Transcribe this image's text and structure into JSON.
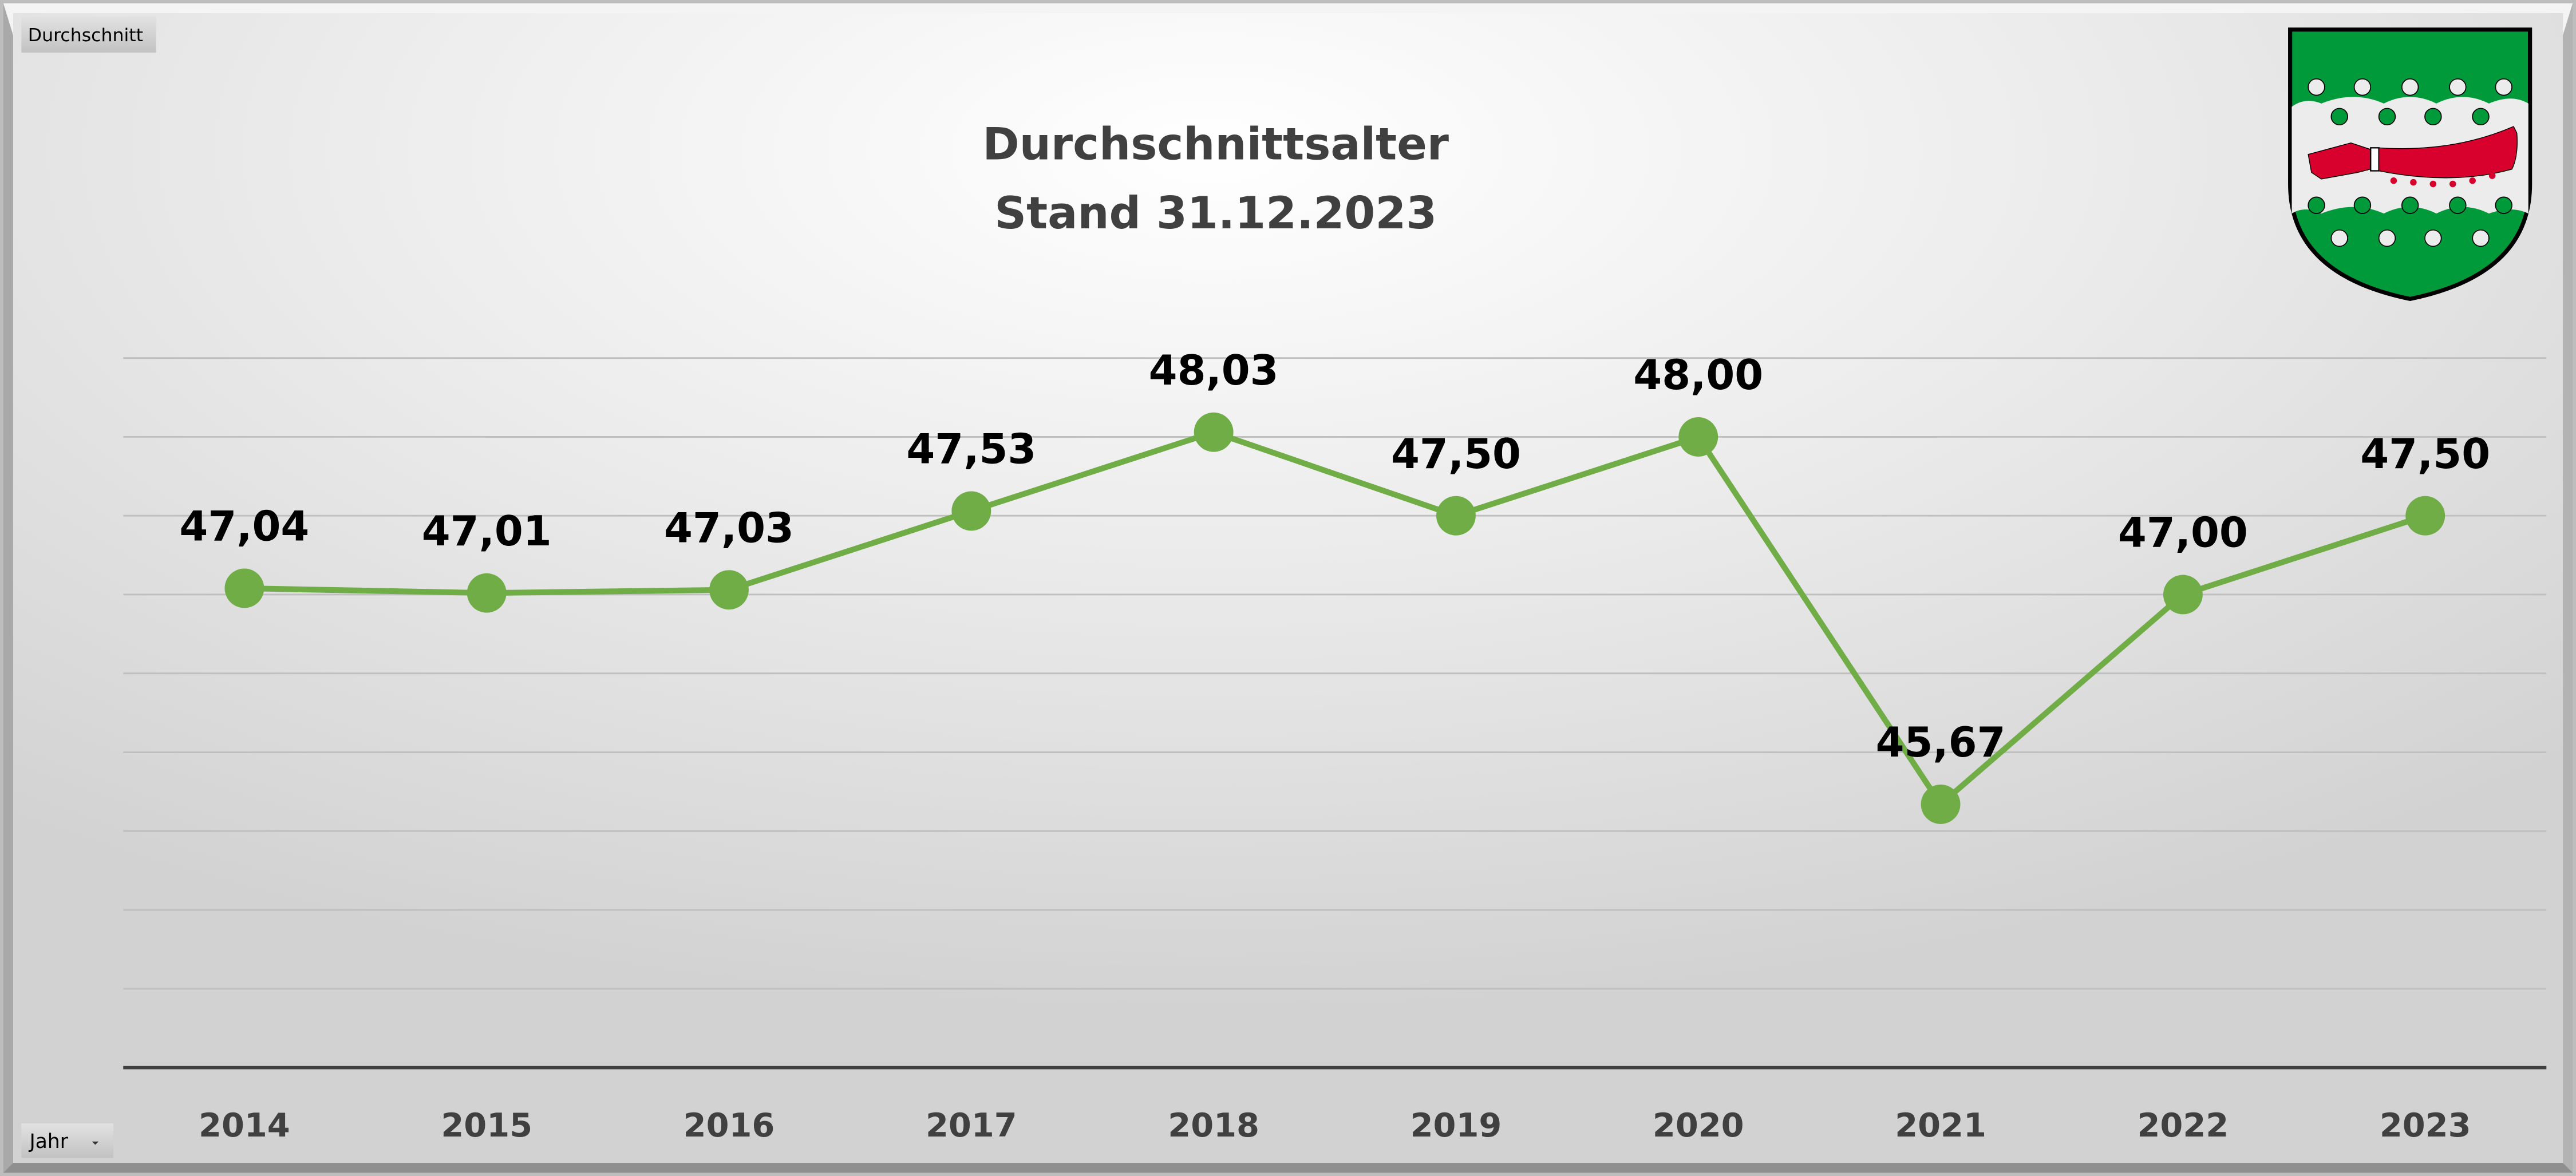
{
  "pivot": {
    "value_field_button": "Durchschnitt",
    "axis_field_button": "Jahr",
    "axis_dropdown_icon": "dropdown-arrow-icon"
  },
  "logo": {
    "name": "coat-of-arms",
    "colors": {
      "green": "#009a3a",
      "silver": "#ececec",
      "red": "#d8002c"
    }
  },
  "colors": {
    "line": "#70ad47",
    "marker": "#70ad47",
    "label": "#000000",
    "title": "#404040",
    "grid": "#bfbfbf",
    "axis": "#404040"
  },
  "chart_data": {
    "type": "line",
    "title": "Durchschnittsalter",
    "subtitle": "Stand 31.12.2023",
    "xlabel": "",
    "ylabel": "",
    "categories": [
      "2014",
      "2015",
      "2016",
      "2017",
      "2018",
      "2019",
      "2020",
      "2021",
      "2022",
      "2023"
    ],
    "series": [
      {
        "name": "Durchschnitt",
        "values": [
          47.04,
          47.01,
          47.03,
          47.53,
          48.03,
          47.5,
          48.0,
          45.67,
          47.0,
          47.5
        ]
      }
    ],
    "data_labels": [
      "47,04",
      "47,01",
      "47,03",
      "47,53",
      "48,03",
      "47,50",
      "48,00",
      "45,67",
      "47,00",
      "47,50"
    ],
    "ylim": [
      44,
      48.5
    ],
    "ytick_step": 0.5,
    "grid": true,
    "legend": "none",
    "y_axis_labels_visible": false
  }
}
